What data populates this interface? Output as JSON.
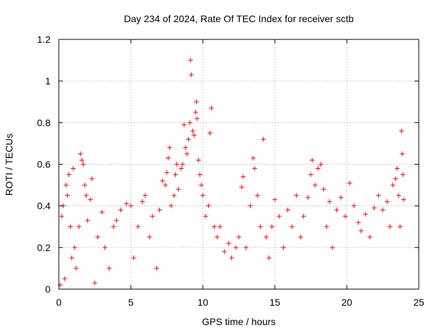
{
  "chart_data": {
    "type": "scatter",
    "title": "Day 234 of 2024, Rate Of TEC Index for receiver sctb",
    "xlabel": "GPS time / hours",
    "ylabel": "ROTI / TECUs",
    "xlim": [
      0,
      25
    ],
    "ylim": [
      0,
      1.2
    ],
    "x_ticks": [
      0,
      5,
      10,
      15,
      20,
      25
    ],
    "x_tick_labels": [
      "0",
      "5",
      "10",
      "15",
      "20",
      "25"
    ],
    "y_ticks": [
      0,
      0.2,
      0.4,
      0.6,
      0.8,
      1.0,
      1.2
    ],
    "y_tick_labels": [
      "0",
      "0.2",
      "0.4",
      "0.6",
      "0.8",
      "1",
      "1.2"
    ],
    "grid": true,
    "marker": "+",
    "color": "#ff0000",
    "series": [
      {
        "name": "ROTI",
        "points": [
          [
            0.1,
            0.02
          ],
          [
            0.2,
            0.35
          ],
          [
            0.3,
            0.4
          ],
          [
            0.4,
            0.05
          ],
          [
            0.5,
            0.5
          ],
          [
            0.6,
            0.45
          ],
          [
            0.7,
            0.55
          ],
          [
            0.8,
            0.3
          ],
          [
            0.9,
            0.15
          ],
          [
            1.0,
            0.58
          ],
          [
            1.1,
            0.2
          ],
          [
            1.2,
            0.1
          ],
          [
            1.4,
            0.3
          ],
          [
            1.5,
            0.65
          ],
          [
            1.6,
            0.62
          ],
          [
            1.7,
            0.6
          ],
          [
            1.8,
            0.5
          ],
          [
            1.9,
            0.45
          ],
          [
            2.0,
            0.33
          ],
          [
            2.2,
            0.43
          ],
          [
            2.3,
            0.53
          ],
          [
            2.5,
            0.03
          ],
          [
            2.7,
            0.25
          ],
          [
            3.0,
            0.37
          ],
          [
            3.2,
            0.2
          ],
          [
            3.5,
            0.1
          ],
          [
            3.8,
            0.3
          ],
          [
            4.0,
            0.33
          ],
          [
            4.3,
            0.38
          ],
          [
            4.7,
            0.41
          ],
          [
            5.0,
            0.4
          ],
          [
            5.2,
            0.15
          ],
          [
            5.5,
            0.3
          ],
          [
            5.8,
            0.42
          ],
          [
            6.0,
            0.45
          ],
          [
            6.3,
            0.25
          ],
          [
            6.5,
            0.35
          ],
          [
            6.8,
            0.1
          ],
          [
            7.0,
            0.38
          ],
          [
            7.2,
            0.52
          ],
          [
            7.4,
            0.5
          ],
          [
            7.5,
            0.56
          ],
          [
            7.6,
            0.63
          ],
          [
            7.7,
            0.68
          ],
          [
            7.8,
            0.4
          ],
          [
            8.0,
            0.45
          ],
          [
            8.1,
            0.55
          ],
          [
            8.2,
            0.6
          ],
          [
            8.3,
            0.48
          ],
          [
            8.5,
            0.58
          ],
          [
            8.6,
            0.6
          ],
          [
            8.7,
            0.79
          ],
          [
            8.8,
            0.68
          ],
          [
            8.9,
            0.65
          ],
          [
            9.0,
            0.72
          ],
          [
            9.1,
            0.8
          ],
          [
            9.15,
            1.1
          ],
          [
            9.2,
            1.03
          ],
          [
            9.3,
            0.76
          ],
          [
            9.4,
            0.74
          ],
          [
            9.5,
            0.85
          ],
          [
            9.55,
            0.9
          ],
          [
            9.6,
            0.82
          ],
          [
            9.7,
            0.62
          ],
          [
            9.8,
            0.55
          ],
          [
            9.9,
            0.5
          ],
          [
            10.0,
            0.45
          ],
          [
            10.2,
            0.35
          ],
          [
            10.4,
            0.4
          ],
          [
            10.5,
            0.75
          ],
          [
            10.6,
            0.87
          ],
          [
            10.8,
            0.3
          ],
          [
            11.0,
            0.25
          ],
          [
            11.2,
            0.3
          ],
          [
            11.5,
            0.18
          ],
          [
            11.8,
            0.22
          ],
          [
            12.0,
            0.15
          ],
          [
            12.3,
            0.2
          ],
          [
            12.5,
            0.25
          ],
          [
            12.7,
            0.49
          ],
          [
            12.8,
            0.54
          ],
          [
            13.0,
            0.2
          ],
          [
            13.3,
            0.4
          ],
          [
            13.5,
            0.63
          ],
          [
            13.6,
            0.58
          ],
          [
            13.8,
            0.45
          ],
          [
            14.0,
            0.3
          ],
          [
            14.2,
            0.72
          ],
          [
            14.4,
            0.25
          ],
          [
            14.6,
            0.15
          ],
          [
            14.8,
            0.3
          ],
          [
            15.0,
            0.43
          ],
          [
            15.3,
            0.35
          ],
          [
            15.6,
            0.2
          ],
          [
            15.9,
            0.38
          ],
          [
            16.2,
            0.3
          ],
          [
            16.5,
            0.45
          ],
          [
            16.8,
            0.25
          ],
          [
            17.0,
            0.35
          ],
          [
            17.3,
            0.44
          ],
          [
            17.5,
            0.55
          ],
          [
            17.6,
            0.62
          ],
          [
            17.8,
            0.5
          ],
          [
            18.0,
            0.58
          ],
          [
            18.2,
            0.6
          ],
          [
            18.4,
            0.48
          ],
          [
            18.6,
            0.3
          ],
          [
            18.8,
            0.42
          ],
          [
            19.0,
            0.2
          ],
          [
            19.3,
            0.38
          ],
          [
            19.6,
            0.44
          ],
          [
            19.9,
            0.35
          ],
          [
            20.2,
            0.51
          ],
          [
            20.5,
            0.4
          ],
          [
            20.8,
            0.32
          ],
          [
            21.0,
            0.28
          ],
          [
            21.3,
            0.36
          ],
          [
            21.6,
            0.25
          ],
          [
            21.9,
            0.39
          ],
          [
            22.2,
            0.45
          ],
          [
            22.5,
            0.38
          ],
          [
            22.8,
            0.42
          ],
          [
            23.0,
            0.3
          ],
          [
            23.2,
            0.5
          ],
          [
            23.4,
            0.53
          ],
          [
            23.5,
            0.58
          ],
          [
            23.6,
            0.45
          ],
          [
            23.7,
            0.3
          ],
          [
            23.8,
            0.76
          ],
          [
            23.85,
            0.65
          ],
          [
            23.9,
            0.55
          ],
          [
            23.95,
            0.43
          ]
        ]
      }
    ]
  }
}
